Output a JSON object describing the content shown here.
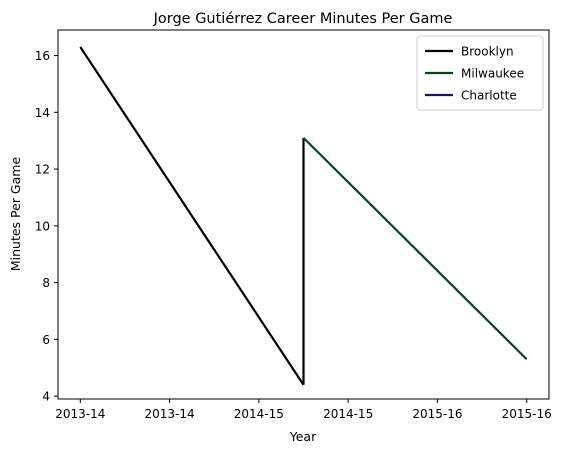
{
  "chart_data": {
    "type": "line",
    "title": "Jorge Gutiérrez  Career Minutes Per Game",
    "xlabel": "Year",
    "ylabel": "Minutes Per Game",
    "xlim": [
      -0.1,
      2.1
    ],
    "ylim": [
      3.9,
      16.9
    ],
    "x_ticks": [
      {
        "value": 0.0,
        "label": "2013-14"
      },
      {
        "value": 0.4,
        "label": "2013-14"
      },
      {
        "value": 0.8,
        "label": "2014-15"
      },
      {
        "value": 1.2,
        "label": "2014-15"
      },
      {
        "value": 1.6,
        "label": "2015-16"
      },
      {
        "value": 2.0,
        "label": "2015-16"
      }
    ],
    "y_ticks": [
      4,
      6,
      8,
      10,
      12,
      14,
      16
    ],
    "legend_position": "top-right",
    "grid": false,
    "series": [
      {
        "name": "Brooklyn",
        "color": "#000000",
        "points": [
          [
            0.0,
            16.3
          ],
          [
            1.0,
            4.4
          ]
        ]
      },
      {
        "name": "Milwaukee",
        "color": "#00471B",
        "points": [
          [
            1.0,
            13.1
          ],
          [
            2.0,
            5.3
          ]
        ]
      },
      {
        "name": "Charlotte",
        "color": "#1D1160",
        "points": []
      }
    ],
    "connector": {
      "color": "#000000",
      "points": [
        [
          1.0,
          4.4
        ],
        [
          1.0,
          13.1
        ]
      ]
    }
  }
}
